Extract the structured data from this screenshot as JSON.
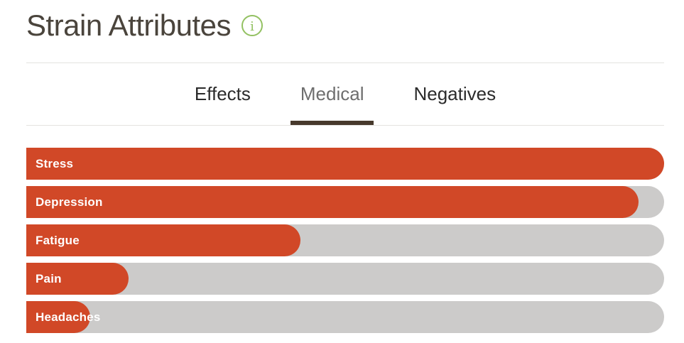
{
  "header": {
    "title": "Strain Attributes",
    "info_icon": "info-circle-icon"
  },
  "tabs": [
    {
      "label": "Effects",
      "active": false
    },
    {
      "label": "Medical",
      "active": true
    },
    {
      "label": "Negatives",
      "active": false
    }
  ],
  "chart_data": {
    "type": "bar",
    "orientation": "horizontal",
    "title": "Strain Attributes",
    "active_tab_context": "Medical",
    "categories": [
      "Stress",
      "Depression",
      "Fatigue",
      "Pain",
      "Headaches"
    ],
    "values": [
      100,
      96,
      43,
      16,
      10
    ],
    "value_unit": "percent of full bar width (no numeric labels shown)",
    "xlim": [
      0,
      100
    ],
    "grid": false,
    "legend": false,
    "bar_color": "#d14827",
    "track_color": "#cccbca"
  },
  "colors": {
    "bar_orange": "#d14827",
    "track_gray": "#cccbca",
    "underline_brown": "#47392c",
    "divider": "#e4e3e0",
    "title_text": "#4a443c",
    "tab_inactive_text": "#2b2b2b",
    "tab_active_text": "#6e6e6e",
    "info_green": "#93c162"
  }
}
